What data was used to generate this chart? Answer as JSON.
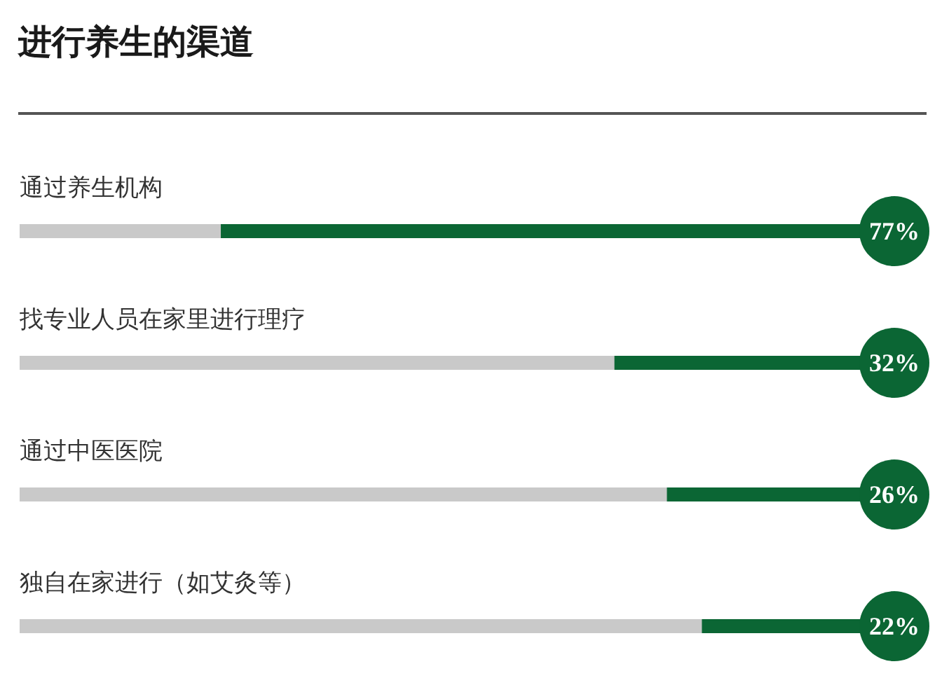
{
  "chart_data": {
    "type": "bar",
    "orientation": "horizontal",
    "title": "进行养生的渠道",
    "categories": [
      "通过养生机构",
      "找专业人员在家里进行理疗",
      "通过中医医院",
      "独自在家进行（如艾灸等）"
    ],
    "values": [
      77,
      32,
      26,
      22
    ],
    "value_labels": [
      "77%",
      "32%",
      "26%",
      "22%"
    ],
    "color": "#0b6634",
    "xlim": [
      100,
      0
    ],
    "tick_labels": "y"
  }
}
